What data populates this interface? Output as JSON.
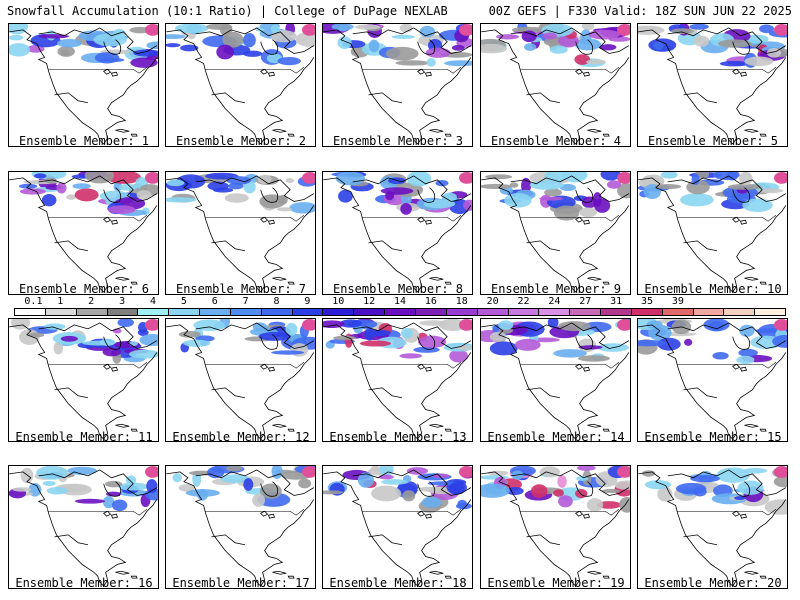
{
  "header": {
    "title_left": "Snowfall Accumulation (10:1 Ratio) | College of DuPage NEXLAB",
    "title_right": "00Z GEFS | F330 Valid: 18Z SUN JUN 22 2025"
  },
  "panels": [
    {
      "label": "Ensemble Member: 1",
      "intensity": 0.8
    },
    {
      "label": "Ensemble Member: 2",
      "intensity": 0.7
    },
    {
      "label": "Ensemble Member: 3",
      "intensity": 0.75
    },
    {
      "label": "Ensemble Member: 4",
      "intensity": 0.9
    },
    {
      "label": "Ensemble Member: 5",
      "intensity": 0.85
    },
    {
      "label": "Ensemble Member: 6",
      "intensity": 0.9
    },
    {
      "label": "Ensemble Member: 7",
      "intensity": 0.6
    },
    {
      "label": "Ensemble Member: 8",
      "intensity": 0.75
    },
    {
      "label": "Ensemble Member: 9",
      "intensity": 0.8
    },
    {
      "label": "Ensemble Member: 10",
      "intensity": 0.7
    },
    {
      "label": "Ensemble Member: 11",
      "intensity": 0.75
    },
    {
      "label": "Ensemble Member: 12",
      "intensity": 0.6
    },
    {
      "label": "Ensemble Member: 13",
      "intensity": 0.85
    },
    {
      "label": "Ensemble Member: 14",
      "intensity": 0.8
    },
    {
      "label": "Ensemble Member: 15",
      "intensity": 0.65
    },
    {
      "label": "Ensemble Member: 16",
      "intensity": 0.7
    },
    {
      "label": "Ensemble Member: 17",
      "intensity": 0.6
    },
    {
      "label": "Ensemble Member: 18",
      "intensity": 0.85
    },
    {
      "label": "Ensemble Member: 19",
      "intensity": 0.95
    },
    {
      "label": "Ensemble Member: 20",
      "intensity": 0.7
    }
  ],
  "legend": {
    "labels": [
      "0.1",
      "1",
      "2",
      "3",
      "4",
      "5",
      "6",
      "7",
      "8",
      "9",
      "10",
      "12",
      "14",
      "16",
      "18",
      "20",
      "22",
      "24",
      "27",
      "31",
      "35",
      "39"
    ],
    "colors": [
      "#ffffff",
      "#d9d9d9",
      "#a6a6a6",
      "#7f7f7f",
      "#9ff0f5",
      "#8ad5f2",
      "#68aef0",
      "#4f8ef0",
      "#3f6af0",
      "#2b3fe6",
      "#2b1fd6",
      "#4a10c8",
      "#6a10c0",
      "#7f20b8",
      "#9a3ad0",
      "#b45ad8",
      "#c878e0",
      "#d98fe6",
      "#c86ab8",
      "#b0388f",
      "#d0306a",
      "#e06a6a",
      "#f0a8a0",
      "#f5cfc0",
      "#fff0e0"
    ]
  }
}
